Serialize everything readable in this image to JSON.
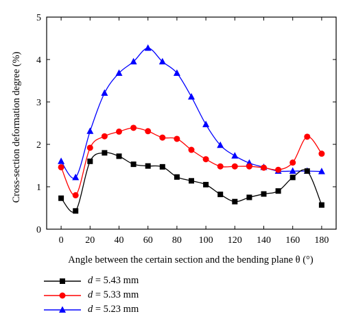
{
  "chart_data": {
    "type": "line",
    "xlabel": "Angle between the certain section and the bending plane θ (°)",
    "ylabel": "Cross-section deformation degree (%)",
    "xlim": [
      -10,
      190
    ],
    "ylim": [
      0,
      5
    ],
    "x_ticks": [
      0,
      20,
      40,
      60,
      80,
      100,
      120,
      140,
      160,
      180
    ],
    "y_ticks": [
      0,
      1,
      2,
      3,
      4,
      5
    ],
    "x_tick_labels": [
      "0",
      "20",
      "40",
      "60",
      "80",
      "100",
      "120",
      "140",
      "160",
      "180"
    ],
    "y_tick_labels": [
      "0",
      "1",
      "2",
      "3",
      "4",
      "5"
    ],
    "grid": false,
    "legend_position": "bottom-left, below plot",
    "x": [
      0,
      10,
      20,
      30,
      40,
      50,
      60,
      70,
      80,
      90,
      100,
      110,
      120,
      130,
      140,
      150,
      160,
      170,
      180
    ],
    "series": [
      {
        "name": "d = 5.43 mm",
        "var": "d",
        "value_text": "= 5.43 mm",
        "color": "#000000",
        "marker": "square",
        "values": [
          0.73,
          0.43,
          1.6,
          1.8,
          1.72,
          1.53,
          1.49,
          1.47,
          1.23,
          1.14,
          1.05,
          0.82,
          0.65,
          0.75,
          0.83,
          0.9,
          1.22,
          1.37,
          0.57
        ]
      },
      {
        "name": "d = 5.33 mm",
        "var": "d",
        "value_text": "= 5.33 mm",
        "color": "#ff0000",
        "marker": "circle",
        "values": [
          1.46,
          0.8,
          1.92,
          2.19,
          2.3,
          2.39,
          2.31,
          2.16,
          2.13,
          1.87,
          1.65,
          1.48,
          1.48,
          1.48,
          1.45,
          1.4,
          1.57,
          2.18,
          1.78
        ]
      },
      {
        "name": "d = 5.23 mm",
        "var": "d",
        "value_text": "= 5.23 mm",
        "color": "#0000ff",
        "marker": "triangle",
        "values": [
          1.6,
          1.22,
          2.31,
          3.21,
          3.68,
          3.95,
          4.27,
          3.95,
          3.68,
          3.12,
          2.47,
          1.98,
          1.73,
          1.56,
          1.46,
          1.37,
          1.37,
          1.37,
          1.36
        ]
      }
    ]
  }
}
